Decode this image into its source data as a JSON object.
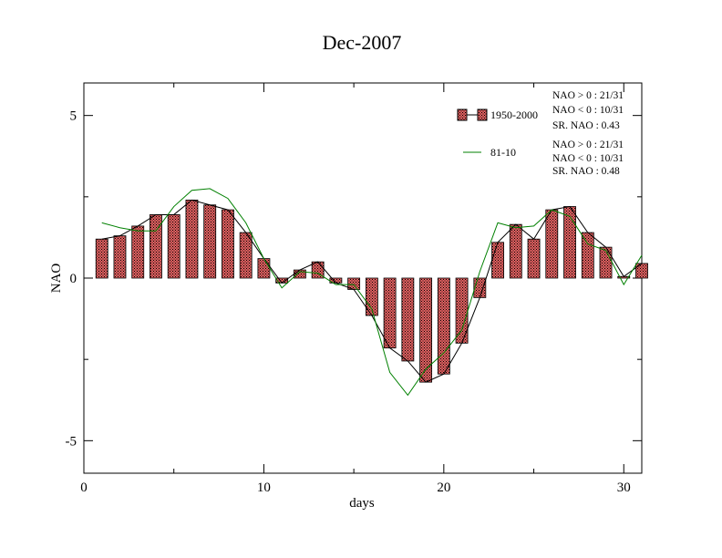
{
  "chart_data": {
    "type": "bar",
    "title": "Dec-2007",
    "xlabel": "days",
    "ylabel": "NAO",
    "xlim": [
      0,
      31
    ],
    "ylim": [
      -6,
      6
    ],
    "x_ticks": [
      0,
      10,
      20,
      30
    ],
    "y_ticks": [
      5,
      0,
      -5
    ],
    "x_tick_labels": [
      "0",
      "10",
      "20",
      "30"
    ],
    "y_tick_labels": [
      "5",
      "0",
      "-5"
    ],
    "days": [
      1,
      2,
      3,
      4,
      5,
      6,
      7,
      8,
      9,
      10,
      11,
      12,
      13,
      14,
      15,
      16,
      17,
      18,
      19,
      20,
      21,
      22,
      23,
      24,
      25,
      26,
      27,
      28,
      29,
      30,
      31
    ],
    "series": [
      {
        "name": "1950-2000",
        "kind": "bar",
        "color": "#e06060",
        "values": [
          1.2,
          1.3,
          1.6,
          1.95,
          1.95,
          2.4,
          2.25,
          2.1,
          1.4,
          0.6,
          -0.15,
          0.25,
          0.5,
          -0.15,
          -0.35,
          -1.15,
          -2.15,
          -2.55,
          -3.2,
          -2.95,
          -2.0,
          -0.6,
          1.1,
          1.65,
          1.2,
          2.1,
          2.2,
          1.4,
          0.95,
          0.05,
          0.45
        ],
        "stats": [
          "NAO > 0 : 21/31",
          "NAO < 0 : 10/31",
          "SR. NAO :  0.43"
        ]
      },
      {
        "name": "81-10",
        "kind": "line",
        "color": "#008000",
        "values": [
          1.7,
          1.55,
          1.45,
          1.45,
          2.2,
          2.7,
          2.75,
          2.45,
          1.7,
          0.6,
          -0.3,
          0.2,
          0.15,
          -0.2,
          -0.2,
          -0.95,
          -2.9,
          -3.6,
          -2.8,
          -2.3,
          -1.6,
          0.2,
          1.7,
          1.55,
          1.6,
          2.1,
          1.9,
          1.05,
          0.85,
          -0.2,
          0.7
        ],
        "stats": [
          "NAO > 0 : 21/31",
          "NAO < 0 : 10/31",
          "SR. NAO :  0.48"
        ]
      }
    ],
    "legend_position": "top-right"
  }
}
